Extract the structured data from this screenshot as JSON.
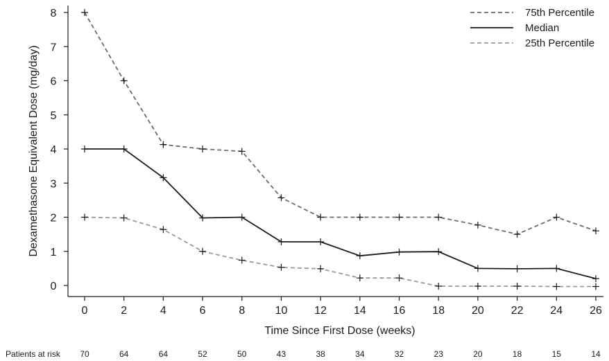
{
  "chart_data": {
    "type": "line",
    "title": "",
    "xlabel": "Time Since First Dose (weeks)",
    "ylabel": "Dexamethasone Equivalent Dose (mg/day)",
    "xlim": [
      0,
      26
    ],
    "ylim": [
      0,
      8
    ],
    "x": [
      0,
      2,
      4,
      6,
      8,
      10,
      12,
      14,
      16,
      18,
      20,
      22,
      24,
      26
    ],
    "x_ticks": [
      "0",
      "2",
      "4",
      "6",
      "8",
      "10",
      "12",
      "14",
      "16",
      "18",
      "20",
      "22",
      "24",
      "26"
    ],
    "y_ticks": [
      "0",
      "1",
      "2",
      "3",
      "4",
      "5",
      "6",
      "7",
      "8"
    ],
    "grid": false,
    "legend_position": "top-right",
    "series": [
      {
        "name": "75th Percentile",
        "style": "dashed",
        "color": "#6b6b6b",
        "values": [
          8.0,
          6.0,
          4.13,
          4.0,
          3.93,
          2.57,
          2.0,
          2.0,
          2.0,
          2.0,
          1.77,
          1.5,
          2.0,
          1.6
        ]
      },
      {
        "name": "Median",
        "style": "solid",
        "color": "#1a1a1a",
        "values": [
          4.0,
          4.0,
          3.16,
          1.98,
          2.0,
          1.28,
          1.28,
          0.87,
          0.98,
          0.99,
          0.5,
          0.49,
          0.5,
          0.2
        ]
      },
      {
        "name": "25th Percentile",
        "style": "dashed",
        "color": "#9a9a9a",
        "values": [
          2.0,
          1.98,
          1.64,
          1.0,
          0.74,
          0.53,
          0.49,
          0.22,
          0.22,
          -0.02,
          -0.02,
          -0.02,
          -0.03,
          -0.03
        ]
      }
    ],
    "patients_at_risk": {
      "label": "Patients at risk",
      "values": [
        "70",
        "64",
        "64",
        "52",
        "50",
        "43",
        "38",
        "34",
        "32",
        "23",
        "20",
        "18",
        "15",
        "14"
      ]
    }
  }
}
